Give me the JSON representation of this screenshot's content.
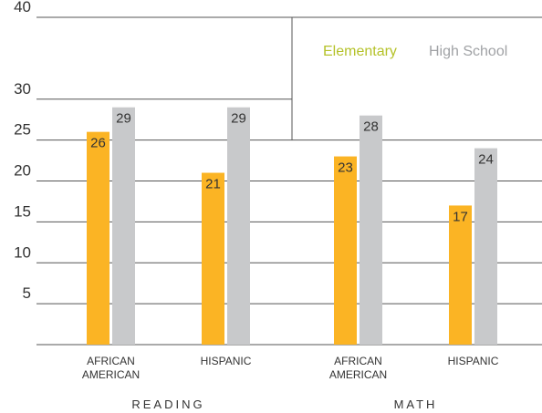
{
  "chart_data": {
    "type": "bar",
    "title": "",
    "xlabel": "",
    "ylabel": "",
    "ylim": [
      0,
      40
    ],
    "yticks": [
      5,
      10,
      15,
      20,
      25,
      30,
      40
    ],
    "grid": true,
    "legend_position": "top-right",
    "groups": [
      {
        "label": "READING",
        "categories": [
          "AFRICAN\nAMERICAN",
          "HISPANIC"
        ]
      },
      {
        "label": "MATH",
        "categories": [
          "AFRICAN\nAMERICAN",
          "HISPANIC"
        ]
      }
    ],
    "categories": [
      "AFRICAN\nAMERICAN",
      "HISPANIC",
      "AFRICAN\nAMERICAN",
      "HISPANIC"
    ],
    "series": [
      {
        "name": "Elementary",
        "color": "#fbb424",
        "values": [
          26,
          21,
          23,
          17
        ]
      },
      {
        "name": "High School",
        "color": "#c8c9cb",
        "values": [
          29,
          29,
          28,
          24
        ]
      }
    ],
    "legend_text_colors": {
      "Elementary": "#b5c22a",
      "High School": "#a0a2a5"
    }
  }
}
